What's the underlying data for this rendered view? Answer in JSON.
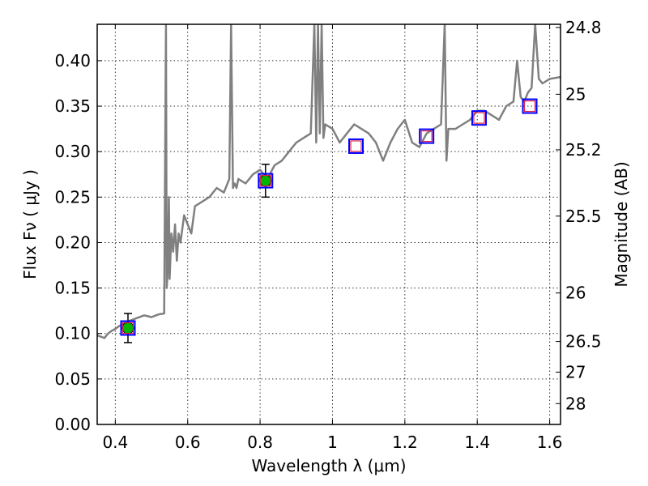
{
  "chart_data": {
    "type": "line",
    "xlabel": "Wavelength  λ (μm)",
    "ylabel_left": "Flux  Fν  ( μJy )",
    "ylabel_right": "Magnitude (AB)",
    "xlim": [
      0.35,
      1.63
    ],
    "ylim": [
      0.0,
      0.44
    ],
    "grid": true,
    "x_ticks": [
      0.4,
      0.6,
      0.8,
      1.0,
      1.2,
      1.4,
      1.6
    ],
    "x_tick_labels": [
      "0.4",
      "0.6",
      "0.8",
      "1",
      "1.2",
      "1.4",
      "1.6"
    ],
    "y_ticks": [
      0.0,
      0.05,
      0.1,
      0.15,
      0.2,
      0.25,
      0.3,
      0.35,
      0.4
    ],
    "y_tick_labels": [
      "0.00",
      "0.05",
      "0.10",
      "0.15",
      "0.20",
      "0.25",
      "0.30",
      "0.35",
      "0.40"
    ],
    "mag_ticks": [
      24.8,
      25,
      25.2,
      25.5,
      26,
      26.5,
      27,
      28
    ],
    "mag_tick_labels": [
      "24.8",
      "25",
      "25.2",
      "25.5",
      "26",
      "26.5",
      "27",
      "28"
    ],
    "colors": {
      "spectrum": "#808080",
      "observed_fill": "#00b400",
      "model_box": "#0000ff",
      "model_inner": "#e0204a"
    },
    "series": [
      {
        "kind": "model_spectrum",
        "x": [
          0.35,
          0.37,
          0.38,
          0.39,
          0.4,
          0.41,
          0.42,
          0.43,
          0.44,
          0.46,
          0.48,
          0.5,
          0.52,
          0.535,
          0.54,
          0.542,
          0.545,
          0.548,
          0.55,
          0.555,
          0.56,
          0.565,
          0.57,
          0.575,
          0.58,
          0.59,
          0.6,
          0.61,
          0.62,
          0.64,
          0.66,
          0.68,
          0.7,
          0.715,
          0.72,
          0.725,
          0.73,
          0.735,
          0.74,
          0.76,
          0.78,
          0.8,
          0.82,
          0.84,
          0.86,
          0.88,
          0.9,
          0.92,
          0.94,
          0.95,
          0.955,
          0.96,
          0.965,
          0.97,
          0.975,
          0.98,
          1.0,
          1.02,
          1.04,
          1.06,
          1.08,
          1.1,
          1.12,
          1.14,
          1.16,
          1.18,
          1.2,
          1.22,
          1.24,
          1.26,
          1.28,
          1.3,
          1.31,
          1.315,
          1.32,
          1.34,
          1.36,
          1.38,
          1.4,
          1.42,
          1.44,
          1.46,
          1.48,
          1.5,
          1.51,
          1.52,
          1.53,
          1.54,
          1.55,
          1.56,
          1.57,
          1.58,
          1.6,
          1.63
        ],
        "y": [
          0.098,
          0.095,
          0.1,
          0.103,
          0.105,
          0.108,
          0.11,
          0.112,
          0.114,
          0.117,
          0.12,
          0.118,
          0.121,
          0.122,
          0.44,
          0.15,
          0.17,
          0.25,
          0.16,
          0.21,
          0.19,
          0.22,
          0.18,
          0.21,
          0.2,
          0.23,
          0.22,
          0.21,
          0.24,
          0.245,
          0.25,
          0.26,
          0.255,
          0.27,
          0.44,
          0.26,
          0.265,
          0.26,
          0.27,
          0.265,
          0.275,
          0.28,
          0.27,
          0.285,
          0.29,
          0.3,
          0.31,
          0.315,
          0.32,
          0.44,
          0.31,
          0.44,
          0.32,
          0.44,
          0.315,
          0.33,
          0.325,
          0.31,
          0.32,
          0.33,
          0.325,
          0.32,
          0.31,
          0.29,
          0.31,
          0.325,
          0.335,
          0.31,
          0.305,
          0.32,
          0.325,
          0.33,
          0.44,
          0.29,
          0.325,
          0.325,
          0.33,
          0.335,
          0.345,
          0.345,
          0.34,
          0.335,
          0.35,
          0.355,
          0.4,
          0.36,
          0.355,
          0.365,
          0.37,
          0.44,
          0.38,
          0.375,
          0.38,
          0.382
        ]
      },
      {
        "kind": "observed",
        "x": [
          0.435,
          0.815
        ],
        "y": [
          0.106,
          0.268
        ],
        "yerr": [
          0.016,
          0.018
        ]
      },
      {
        "kind": "model_photometry",
        "x": [
          0.435,
          0.815,
          1.065,
          1.26,
          1.405,
          1.545
        ],
        "y": [
          0.106,
          0.268,
          0.306,
          0.317,
          0.337,
          0.35
        ]
      }
    ]
  }
}
